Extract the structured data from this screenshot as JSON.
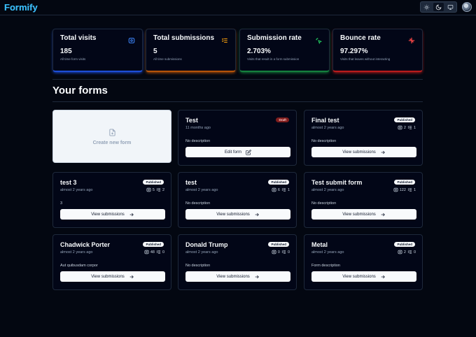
{
  "app": {
    "title": "Formify"
  },
  "theme": {
    "options": [
      "light",
      "dark",
      "system"
    ],
    "selected": "dark"
  },
  "stats": [
    {
      "title": "Total visits",
      "value": "185",
      "description": "All time form visits",
      "icon": "eye-icon",
      "color": "#3b82f6",
      "border": "#1d4ed8"
    },
    {
      "title": "Total submissions",
      "value": "5",
      "description": "All time submissions",
      "icon": "list-icon",
      "color": "#f59e0b",
      "border": "#b45309"
    },
    {
      "title": "Submission rate",
      "value": "2.703%",
      "description": "Visits that result in a form submission",
      "icon": "cursor-icon",
      "color": "#22c55e",
      "border": "#15803d"
    },
    {
      "title": "Bounce rate",
      "value": "97.297%",
      "description": "Visits that leaves without interacting",
      "icon": "split-icon",
      "color": "#ef4444",
      "border": "#b91c1c"
    }
  ],
  "section": {
    "title": "Your forms"
  },
  "create": {
    "label": "Create new form"
  },
  "forms": [
    {
      "name": "Test",
      "time": "11 months ago",
      "status": "Draft",
      "description": "No description",
      "action": "Edit form"
    },
    {
      "name": "Final test",
      "time": "almost 2 years ago",
      "status": "Published",
      "visits": "2",
      "submissions": "1",
      "description": "No description",
      "action": "View submissions"
    },
    {
      "name": "test 3",
      "time": "almost 2 years ago",
      "status": "Published",
      "visits": "5",
      "submissions": "2",
      "description": "3",
      "action": "View submissions"
    },
    {
      "name": "test",
      "time": "almost 2 years ago",
      "status": "Published",
      "visits": "6",
      "submissions": "1",
      "description": "No description",
      "action": "View submissions"
    },
    {
      "name": "Test submit form",
      "time": "almost 2 years ago",
      "status": "Published",
      "visits": "122",
      "submissions": "1",
      "description": "No description",
      "action": "View submissions"
    },
    {
      "name": "Chadwick Porter",
      "time": "almost 2 years ago",
      "status": "Published",
      "visits": "48",
      "submissions": "0",
      "description": "Aut quibusdam corpor",
      "action": "View submissions"
    },
    {
      "name": "Donald Trump",
      "time": "almost 2 years ago",
      "status": "Published",
      "visits": "0",
      "submissions": "0",
      "description": "No description",
      "action": "View submissions"
    },
    {
      "name": "Metal",
      "time": "almost 2 years ago",
      "status": "Published",
      "visits": "2",
      "submissions": "0",
      "description": "Form description",
      "action": "View submissions"
    }
  ]
}
